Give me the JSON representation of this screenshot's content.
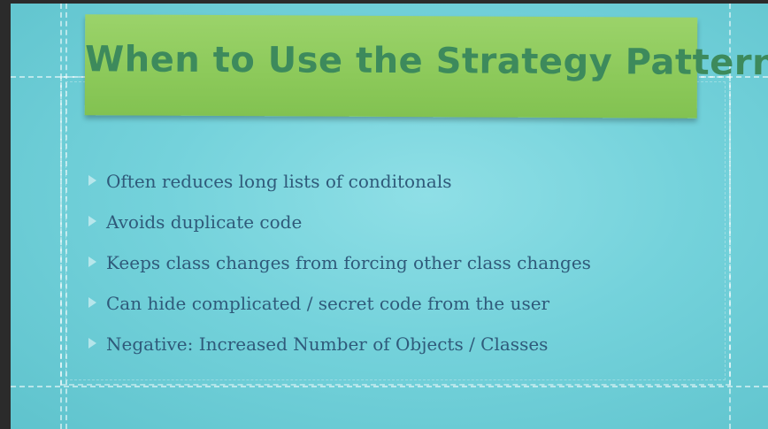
{
  "slide": {
    "title": "When to Use the Strategy Pattern",
    "bullets": [
      {
        "text": "Often reduces long lists of conditonals"
      },
      {
        "text": "Avoids duplicate code"
      },
      {
        "text": "Keeps class changes from forcing other class changes"
      },
      {
        "text": "Can hide complicated / secret code from the user"
      },
      {
        "text": "Negative: Increased Number of Objects / Classes"
      }
    ]
  },
  "colors": {
    "background": "#74d2db",
    "title_note": "#8cc95a",
    "title_text": "#3d8a5c",
    "bullet_text": "#2f5a7a"
  },
  "icons": {
    "bullet": "triangle-bullet-icon"
  }
}
